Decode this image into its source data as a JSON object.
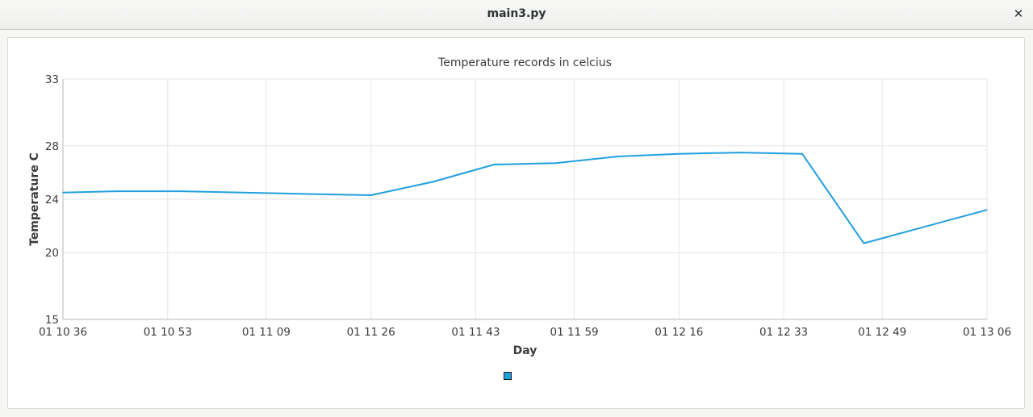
{
  "window": {
    "title": "main3.py",
    "close_glyph": "✕"
  },
  "colors": {
    "series": "#209fdf",
    "grid": "#e6e6e6",
    "axis": "#cfcfcf"
  },
  "chart_data": {
    "type": "line",
    "title": "Temperature records in celcius",
    "xlabel": "Day",
    "ylabel": "Temperature C",
    "ylim": [
      15,
      33
    ],
    "yticks": [
      "15",
      "20",
      "24",
      "28",
      "33"
    ],
    "xticks": [
      "01 10 36",
      "01 10 53",
      "01 11 09",
      "01 11 26",
      "01 11 43",
      "01 11 59",
      "01 12 16",
      "01 12 33",
      "01 12 49",
      "01 13 06"
    ],
    "grid": true,
    "legend": {
      "placement": "bottom",
      "entries": [
        ""
      ]
    },
    "series": [
      {
        "color": "#209fdf",
        "points": [
          {
            "x": "01 10 36",
            "y": 24.5
          },
          {
            "x": "01 10 45",
            "y": 24.6
          },
          {
            "x": "01 10 55",
            "y": 24.6
          },
          {
            "x": "01 11 15",
            "y": 24.4
          },
          {
            "x": "01 11 26",
            "y": 24.3
          },
          {
            "x": "01 11 36",
            "y": 25.3
          },
          {
            "x": "01 11 46",
            "y": 26.6
          },
          {
            "x": "01 11 56",
            "y": 26.7
          },
          {
            "x": "01 12 06",
            "y": 27.2
          },
          {
            "x": "01 12 16",
            "y": 27.4
          },
          {
            "x": "01 12 26",
            "y": 27.5
          },
          {
            "x": "01 12 36",
            "y": 27.4
          },
          {
            "x": "01 12 46",
            "y": 20.7
          },
          {
            "x": "01 13 06",
            "y": 23.2
          }
        ]
      }
    ]
  }
}
